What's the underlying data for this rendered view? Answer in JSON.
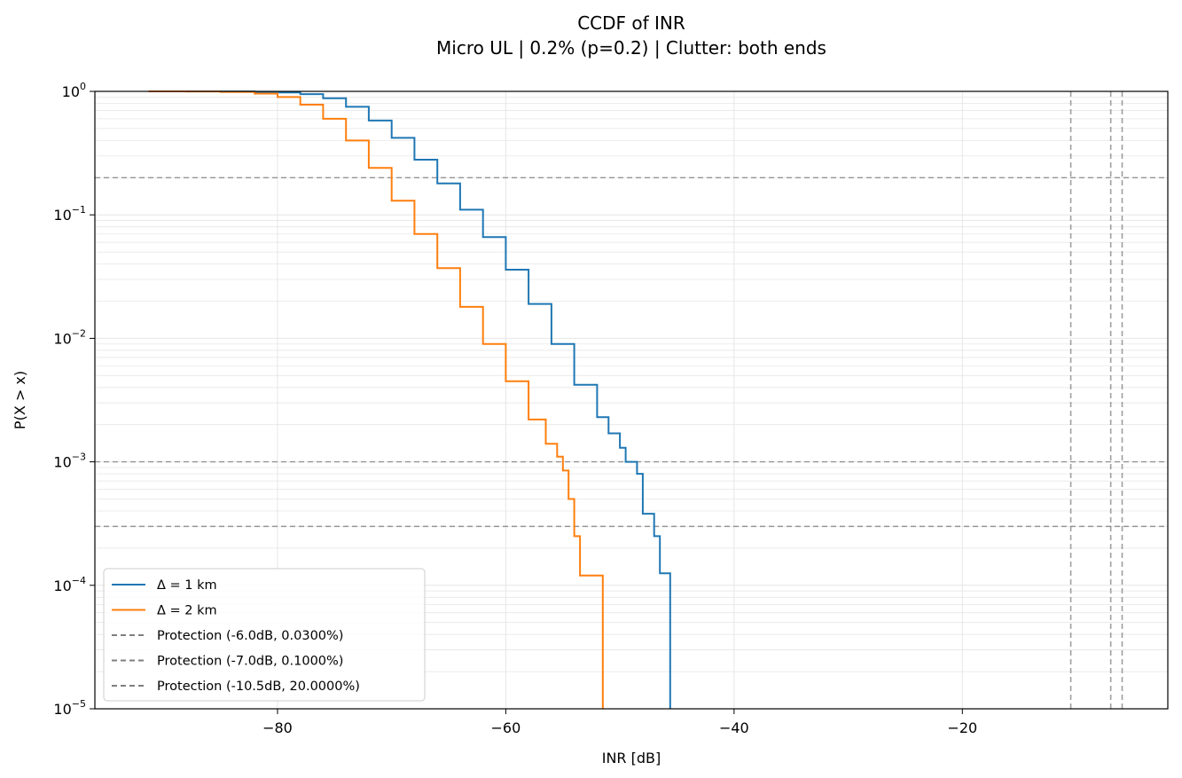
{
  "chart_data": {
    "type": "line",
    "title": "CCDF of INR",
    "subtitle": "Micro UL | 0.2% (p=0.2) | Clutter: both ends",
    "xlabel": "INR [dB]",
    "ylabel": "P(X > x)",
    "xlim": [
      -96,
      -2
    ],
    "ylim": [
      1e-05,
      1
    ],
    "yscale": "log",
    "xticks": [
      -80,
      -60,
      -40,
      -20
    ],
    "xtick_labels": [
      "−80",
      "−60",
      "−40",
      "−20"
    ],
    "yticks": [
      {
        "value": 1e-05,
        "base": "10",
        "exp": "−5"
      },
      {
        "value": 0.0001,
        "base": "10",
        "exp": "−4"
      },
      {
        "value": 0.001,
        "base": "10",
        "exp": "−3"
      },
      {
        "value": 0.01,
        "base": "10",
        "exp": "−2"
      },
      {
        "value": 0.1,
        "base": "10",
        "exp": "−1"
      },
      {
        "value": 1,
        "base": "10",
        "exp": "0"
      }
    ],
    "grid": true,
    "legend_position": "lower-left",
    "series": [
      {
        "name": "Δ = 1 km",
        "color": "#1f77b4",
        "x": [
          -91.3,
          -88,
          -85,
          -82,
          -80,
          -78,
          -76,
          -74,
          -72,
          -70,
          -68,
          -66,
          -64,
          -62,
          -60,
          -58,
          -56,
          -54,
          -52,
          -51,
          -50,
          -49.5,
          -49,
          -48.5,
          -48,
          -47.5,
          -47,
          -46.5,
          -45.6
        ],
        "y": [
          1.0,
          1.0,
          0.998,
          0.992,
          0.98,
          0.95,
          0.88,
          0.75,
          0.58,
          0.42,
          0.28,
          0.18,
          0.11,
          0.066,
          0.036,
          0.019,
          0.009,
          0.0042,
          0.0023,
          0.0017,
          0.0013,
          0.001,
          0.001,
          0.0008,
          0.00038,
          0.00038,
          0.00025,
          0.000125,
          0.000125
        ]
      },
      {
        "name": "Δ = 2 km",
        "color": "#ff7f0e",
        "x": [
          -91.3,
          -88,
          -85,
          -82,
          -80,
          -78,
          -76,
          -74,
          -72,
          -70,
          -68,
          -66,
          -64,
          -62,
          -60,
          -58,
          -56.5,
          -55.5,
          -55,
          -54.5,
          -54,
          -53.5,
          -51.5
        ],
        "y": [
          1.0,
          0.998,
          0.99,
          0.96,
          0.9,
          0.78,
          0.6,
          0.4,
          0.24,
          0.13,
          0.07,
          0.037,
          0.018,
          0.009,
          0.0045,
          0.0022,
          0.0014,
          0.0011,
          0.00085,
          0.0005,
          0.00025,
          0.00012,
          0.00012
        ]
      }
    ],
    "protection_lines": [
      {
        "label": "Protection (-6.0dB, 0.0300%)",
        "inr_db": -6.0,
        "probability": 0.0003
      },
      {
        "label": "Protection (-7.0dB, 0.1000%)",
        "inr_db": -7.0,
        "probability": 0.001
      },
      {
        "label": "Protection (-10.5dB, 20.0000%)",
        "inr_db": -10.5,
        "probability": 0.2
      }
    ],
    "colors": {
      "protection": "#7f7f7f",
      "grid": "#e6e6e6",
      "axes": "#000000"
    }
  }
}
